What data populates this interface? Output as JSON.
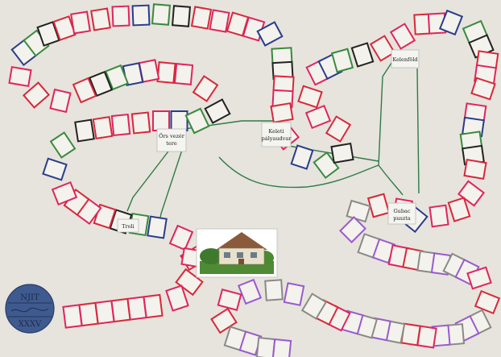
{
  "board": {
    "stations": [
      {
        "name": "Örs vezér tere",
        "lines": [
          "Örs vezér",
          "tere"
        ]
      },
      {
        "name": "Keleti pályaudvar",
        "lines": [
          "Keleti",
          "pályaudvar"
        ]
      },
      {
        "name": "Kelenföld",
        "lines": [
          "Kelenföld"
        ]
      },
      {
        "name": "Gubac puszta",
        "lines": [
          "Gubac",
          "puszta"
        ]
      },
      {
        "name": "Troli",
        "lines": [
          "Troli"
        ]
      }
    ],
    "logo": {
      "top_text": "NJIT",
      "bottom_text": "XXXV"
    },
    "center_picture": "house-photo",
    "colors": {
      "paper": "#e6e4dc",
      "red": "#d8283a",
      "pink": "#e0245e",
      "blue": "#2a3c8c",
      "green": "#3a8a3e",
      "black": "#222222",
      "grey": "#8a8a86",
      "purple": "#9a5ad0",
      "track": "#2f7a48",
      "logo_fill": "#3f5a8f"
    }
  }
}
